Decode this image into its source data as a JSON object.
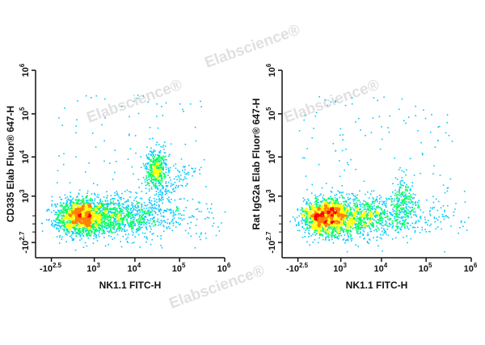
{
  "watermark": "Elabscience®",
  "chart_data": [
    {
      "type": "scatter",
      "subtype": "flow-cytometry-density-dot-plot",
      "xlabel": "NK1.1 FITC-H",
      "ylabel": "CD335 Elab Fluor® 647-H",
      "x_scale": "biexponential",
      "y_scale": "biexponential",
      "x_ticks": [
        {
          "label": "-10",
          "exp": "2.5",
          "value": -316
        },
        {
          "label": "10",
          "exp": "3",
          "value": 1000
        },
        {
          "label": "10",
          "exp": "4",
          "value": 10000
        },
        {
          "label": "10",
          "exp": "5",
          "value": 100000
        },
        {
          "label": "10",
          "exp": "6",
          "value": 1000000
        }
      ],
      "y_ticks": [
        {
          "label": "-10",
          "exp": "2.7",
          "value": -501
        },
        {
          "label": "10",
          "exp": "3",
          "value": 1000
        },
        {
          "label": "10",
          "exp": "4",
          "value": 10000
        },
        {
          "label": "10",
          "exp": "5",
          "value": 100000
        },
        {
          "label": "10",
          "exp": "6",
          "value": 1000000
        }
      ],
      "populations": [
        {
          "x_center": 250,
          "y_center": 150,
          "density": "high",
          "extends_x_to": 100000
        },
        {
          "x_center": 30000,
          "y_center": 5000,
          "density": "medium"
        }
      ],
      "colormap": [
        "#0000ff",
        "#00c8ff",
        "#00ff60",
        "#ffff00",
        "#ff8000",
        "#ff0000"
      ]
    },
    {
      "type": "scatter",
      "subtype": "flow-cytometry-density-dot-plot",
      "xlabel": "NK1.1 FITC-H",
      "ylabel": "Rat IgG2a Elab Fluor® 647-H",
      "x_scale": "biexponential",
      "y_scale": "biexponential",
      "x_ticks": [
        {
          "label": "-10",
          "exp": "2.5",
          "value": -316
        },
        {
          "label": "10",
          "exp": "3",
          "value": 1000
        },
        {
          "label": "10",
          "exp": "4",
          "value": 10000
        },
        {
          "label": "10",
          "exp": "5",
          "value": 100000
        },
        {
          "label": "10",
          "exp": "6",
          "value": 1000000
        }
      ],
      "y_ticks": [
        {
          "label": "-10",
          "exp": "2.7",
          "value": -501
        },
        {
          "label": "10",
          "exp": "3",
          "value": 1000
        },
        {
          "label": "10",
          "exp": "4",
          "value": 10000
        },
        {
          "label": "10",
          "exp": "5",
          "value": 100000
        },
        {
          "label": "10",
          "exp": "6",
          "value": 1000000
        }
      ],
      "populations": [
        {
          "x_center": 250,
          "y_center": 150,
          "density": "high",
          "extends_x_to": 100000
        }
      ],
      "colormap": [
        "#0000ff",
        "#00c8ff",
        "#00ff60",
        "#ffff00",
        "#ff8000",
        "#ff0000"
      ]
    }
  ]
}
